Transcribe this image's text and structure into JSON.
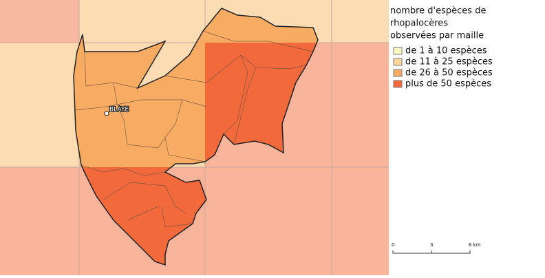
{
  "map": {
    "place_label": "BLAYE",
    "legend": {
      "title_lines": [
        "nombre d'espèces de",
        "rhopalocères",
        "observées par maille"
      ],
      "items": [
        "de 1 à 10 espèces",
        "de 11 à 25 espèces",
        "de 26 à 50 espèces",
        "plus de 50 espèces"
      ]
    },
    "scale_bar": {
      "labels": [
        "0",
        "3",
        "6 km"
      ]
    }
  }
}
